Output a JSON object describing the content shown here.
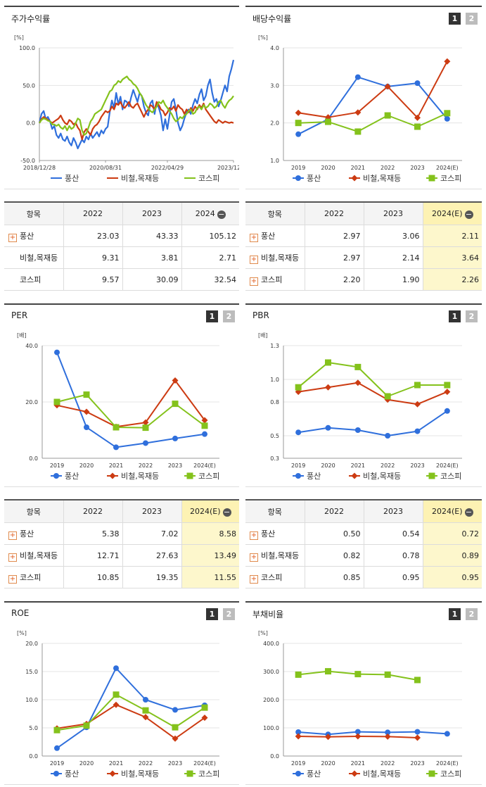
{
  "colors": {
    "poongsan": "#2f6fdc",
    "metal": "#cc3b12",
    "kospi": "#84c21c"
  },
  "legend": [
    "풍산",
    "비철,목재등",
    "코스피"
  ],
  "page_buttons": [
    "1",
    "2"
  ],
  "panels": {
    "stock": {
      "title": "주가수익률"
    },
    "div": {
      "title": "배당수익률"
    },
    "per": {
      "title": "PER"
    },
    "pbr": {
      "title": "PBR"
    },
    "roe": {
      "title": "ROE"
    },
    "debt": {
      "title": "부채비율"
    }
  },
  "tables": {
    "stock": {
      "header": [
        "항목",
        "2022",
        "2023",
        "2024"
      ],
      "rows": [
        {
          "name": "풍산",
          "values": [
            "23.03",
            "43.33",
            "105.12"
          ],
          "expand": true
        },
        {
          "name": "비철,목재등",
          "values": [
            "9.31",
            "3.81",
            "2.71"
          ],
          "expand": false
        },
        {
          "name": "코스피",
          "values": [
            "9.57",
            "30.09",
            "32.54"
          ],
          "expand": false
        }
      ]
    },
    "div": {
      "header": [
        "항목",
        "2022",
        "2023",
        "2024(E)"
      ],
      "rows": [
        {
          "name": "풍산",
          "values": [
            "2.97",
            "3.06",
            "2.11"
          ],
          "expand": true
        },
        {
          "name": "비철,목재등",
          "values": [
            "2.97",
            "2.14",
            "3.64"
          ],
          "expand": true
        },
        {
          "name": "코스피",
          "values": [
            "2.20",
            "1.90",
            "2.26"
          ],
          "expand": true
        }
      ]
    },
    "per": {
      "header": [
        "항목",
        "2022",
        "2023",
        "2024(E)"
      ],
      "rows": [
        {
          "name": "풍산",
          "values": [
            "5.38",
            "7.02",
            "8.58"
          ],
          "expand": true
        },
        {
          "name": "비철,목재등",
          "values": [
            "12.71",
            "27.63",
            "13.49"
          ],
          "expand": true
        },
        {
          "name": "코스피",
          "values": [
            "10.85",
            "19.35",
            "11.55"
          ],
          "expand": true
        }
      ]
    },
    "pbr": {
      "header": [
        "항목",
        "2022",
        "2023",
        "2024(E)"
      ],
      "rows": [
        {
          "name": "풍산",
          "values": [
            "0.50",
            "0.54",
            "0.72"
          ],
          "expand": true
        },
        {
          "name": "비철,목재등",
          "values": [
            "0.82",
            "0.78",
            "0.89"
          ],
          "expand": true
        },
        {
          "name": "코스피",
          "values": [
            "0.85",
            "0.95",
            "0.95"
          ],
          "expand": true
        }
      ]
    }
  },
  "chart_data": [
    {
      "id": "stock",
      "type": "line",
      "title": "주가수익률",
      "ylabel": "[%]",
      "ylim": [
        -50,
        100
      ],
      "yticks": [
        "100.0",
        "50.0",
        "0.0",
        "-50.0"
      ],
      "xticks": [
        "2018/12/28",
        "2020/08/31",
        "2022/04/29",
        "2023/12/28"
      ],
      "series": [
        {
          "name": "풍산",
          "values": [
            0,
            12,
            16,
            5,
            8,
            2,
            -8,
            -4,
            -16,
            -20,
            -14,
            -22,
            -24,
            -18,
            -26,
            -30,
            -20,
            -26,
            -34,
            -28,
            -22,
            -26,
            -18,
            -22,
            -14,
            -20,
            -16,
            -12,
            -18,
            -10,
            -14,
            -8,
            -5,
            15,
            30,
            20,
            40,
            25,
            35,
            18,
            30,
            28,
            22,
            34,
            44,
            36,
            28,
            40,
            36,
            22,
            14,
            10,
            26,
            30,
            12,
            28,
            20,
            10,
            -10,
            5,
            -8,
            10,
            28,
            32,
            18,
            0,
            -10,
            -4,
            6,
            14,
            18,
            12,
            24,
            32,
            26,
            38,
            45,
            30,
            36,
            50,
            58,
            40,
            28,
            32,
            22,
            30,
            40,
            50,
            42,
            62,
            72,
            84
          ]
        },
        {
          "name": "비철,목재등",
          "values": [
            0,
            5,
            8,
            6,
            4,
            2,
            0,
            2,
            4,
            6,
            10,
            4,
            0,
            -2,
            4,
            2,
            -2,
            0,
            -6,
            -10,
            -22,
            -12,
            -8,
            -12,
            -16,
            -8,
            -4,
            -2,
            2,
            8,
            12,
            16,
            14,
            16,
            22,
            18,
            26,
            24,
            28,
            22,
            20,
            24,
            28,
            22,
            20,
            24,
            26,
            20,
            14,
            8,
            14,
            18,
            24,
            22,
            18,
            28,
            24,
            18,
            16,
            10,
            14,
            20,
            18,
            22,
            16,
            24,
            20,
            18,
            12,
            18,
            14,
            20,
            16,
            22,
            18,
            24,
            20,
            26,
            18,
            14,
            10,
            6,
            2,
            0,
            4,
            2,
            0,
            2,
            1,
            0,
            1,
            0
          ]
        },
        {
          "name": "코스피",
          "values": [
            0,
            4,
            6,
            5,
            3,
            2,
            -2,
            -2,
            -4,
            -2,
            -6,
            -8,
            -4,
            -10,
            -4,
            -8,
            -6,
            0,
            6,
            4,
            -10,
            -16,
            -14,
            -6,
            2,
            6,
            12,
            14,
            16,
            18,
            24,
            30,
            36,
            42,
            44,
            50,
            52,
            56,
            54,
            58,
            60,
            62,
            58,
            56,
            52,
            50,
            46,
            40,
            36,
            30,
            24,
            20,
            16,
            14,
            18,
            22,
            28,
            26,
            30,
            24,
            20,
            16,
            12,
            6,
            2,
            4,
            8,
            6,
            10,
            12,
            16,
            18,
            12,
            14,
            20,
            22,
            18,
            24,
            20,
            22,
            26,
            24,
            20,
            22,
            28,
            30,
            24,
            20,
            26,
            30,
            32,
            36
          ]
        }
      ]
    },
    {
      "id": "div",
      "type": "line",
      "title": "배당수익률",
      "ylabel": "[%]",
      "ylim": [
        1.0,
        4.0
      ],
      "yticks": [
        "4.0",
        "3.0",
        "2.0",
        "1.0"
      ],
      "categories": [
        "2019",
        "2020",
        "2021",
        "2022",
        "2023",
        "2024(E)"
      ],
      "series": [
        {
          "name": "풍산",
          "values": [
            1.7,
            2.1,
            3.22,
            2.97,
            3.06,
            2.11
          ]
        },
        {
          "name": "비철,목재등",
          "values": [
            2.27,
            2.15,
            2.28,
            2.97,
            2.14,
            3.64
          ]
        },
        {
          "name": "코스피",
          "values": [
            2.0,
            2.03,
            1.77,
            2.2,
            1.9,
            2.26
          ]
        }
      ]
    },
    {
      "id": "per",
      "type": "line",
      "title": "PER",
      "ylabel": "[배]",
      "ylim": [
        0,
        40
      ],
      "yticks": [
        "40.0",
        "20.0",
        "0.0"
      ],
      "categories": [
        "2019",
        "2020",
        "2021",
        "2022",
        "2023",
        "2024(E)"
      ],
      "series": [
        {
          "name": "풍산",
          "values": [
            37.6,
            11.0,
            3.9,
            5.38,
            7.02,
            8.58
          ]
        },
        {
          "name": "비철,목재등",
          "values": [
            18.8,
            16.5,
            11.2,
            12.71,
            27.63,
            13.49
          ]
        },
        {
          "name": "코스피",
          "values": [
            20.0,
            22.6,
            11.0,
            10.85,
            19.35,
            11.55
          ]
        }
      ]
    },
    {
      "id": "pbr",
      "type": "line",
      "title": "PBR",
      "ylabel": "[배]",
      "ylim": [
        0.3,
        1.3
      ],
      "yticks": [
        "1.3",
        "1.0",
        "0.8",
        "0.5",
        "0.3"
      ],
      "categories": [
        "2019",
        "2020",
        "2021",
        "2022",
        "2023",
        "2024(E)"
      ],
      "series": [
        {
          "name": "풍산",
          "values": [
            0.53,
            0.57,
            0.55,
            0.5,
            0.54,
            0.72
          ]
        },
        {
          "name": "비철,목재등",
          "values": [
            0.89,
            0.93,
            0.97,
            0.82,
            0.78,
            0.89
          ]
        },
        {
          "name": "코스피",
          "values": [
            0.93,
            1.15,
            1.11,
            0.85,
            0.95,
            0.95
          ]
        }
      ]
    },
    {
      "id": "roe",
      "type": "line",
      "title": "ROE",
      "ylabel": "[%]",
      "ylim": [
        0,
        20
      ],
      "yticks": [
        "20.0",
        "15.0",
        "10.0",
        "5.0",
        "0.0"
      ],
      "categories": [
        "2019",
        "2020",
        "2021",
        "2022",
        "2023",
        "2024(E)"
      ],
      "series": [
        {
          "name": "풍산",
          "values": [
            1.4,
            5.1,
            15.6,
            10.0,
            8.2,
            9.0
          ]
        },
        {
          "name": "비철,목재등",
          "values": [
            4.9,
            5.7,
            9.1,
            6.9,
            3.1,
            6.8
          ]
        },
        {
          "name": "코스피",
          "values": [
            4.6,
            5.4,
            10.9,
            8.1,
            5.1,
            8.6
          ]
        }
      ]
    },
    {
      "id": "debt",
      "type": "line",
      "title": "부채비율",
      "ylabel": "[%]",
      "ylim": [
        0,
        400
      ],
      "yticks": [
        "400.0",
        "300.0",
        "200.0",
        "100.0",
        "0.0"
      ],
      "categories": [
        "2019",
        "2020",
        "2021",
        "2022",
        "2023",
        "2024(E)"
      ],
      "series": [
        {
          "name": "풍산",
          "values": [
            85,
            77,
            86,
            84,
            86,
            79
          ]
        },
        {
          "name": "비철,목재등",
          "values": [
            70,
            68,
            70,
            69,
            65,
            null
          ]
        },
        {
          "name": "코스피",
          "values": [
            289,
            301,
            291,
            289,
            270,
            null
          ]
        }
      ]
    }
  ]
}
